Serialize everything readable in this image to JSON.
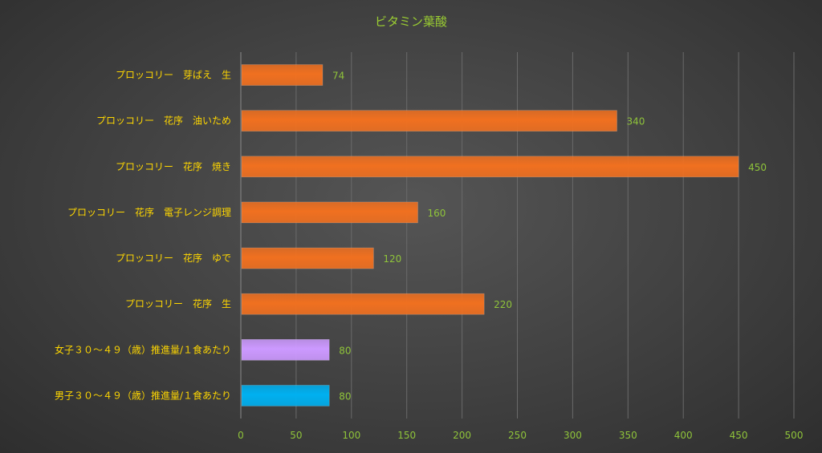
{
  "chart_data": {
    "type": "bar",
    "orientation": "horizontal",
    "title": "ビタミン葉酸",
    "categories": [
      "プロッコリー　芽ばえ　生",
      "プロッコリー　花序　油いため",
      "プロッコリー　花序　焼き",
      "プロッコリー　花序　電子レンジ調理",
      "プロッコリー　花序　ゆで",
      "プロッコリー　花序　生",
      "女子３０～４９（歳）推進量/１食あたり",
      "男子３０～４９（歳）推進量/１食あたり"
    ],
    "values": [
      74,
      340,
      450,
      160,
      120,
      220,
      80,
      80
    ],
    "data_labels": [
      "74",
      "340",
      "450",
      "160",
      "120",
      "220",
      "80",
      "80"
    ],
    "bar_colors": [
      "#f07020",
      "#f07020",
      "#f07020",
      "#f07020",
      "#f07020",
      "#f07020",
      "#cc99ff",
      "#00b0f0"
    ],
    "xlim": [
      0,
      500
    ],
    "xticks": [
      0,
      50,
      100,
      150,
      200,
      250,
      300,
      350,
      400,
      450,
      500
    ],
    "xtick_labels": [
      "0",
      "50",
      "100",
      "150",
      "200",
      "250",
      "300",
      "350",
      "400",
      "450",
      "500"
    ],
    "grid": true,
    "legend": "none"
  }
}
